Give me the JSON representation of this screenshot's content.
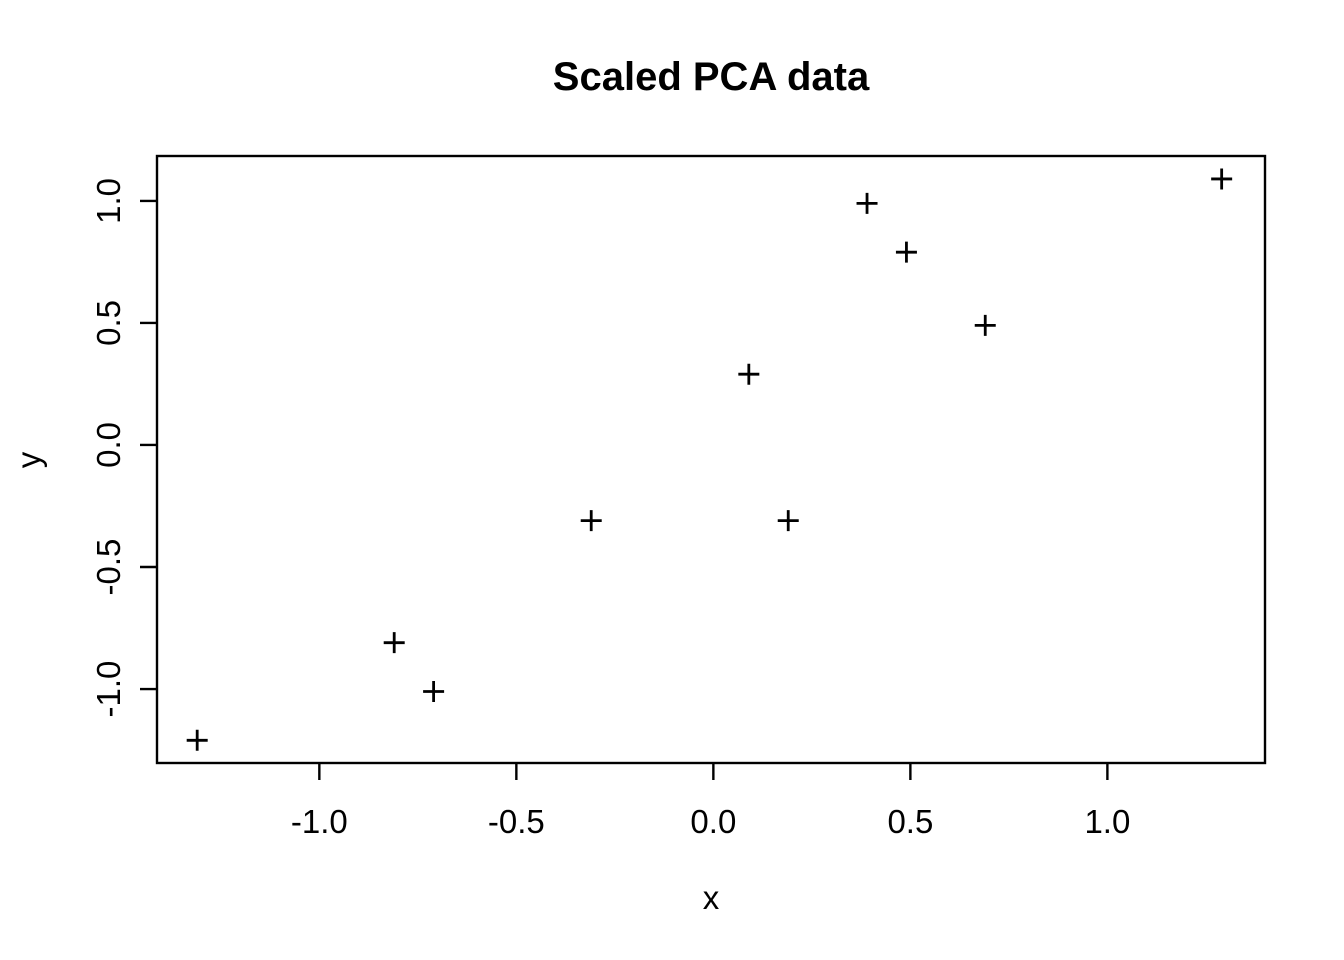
{
  "figure": {
    "kind": "r-base-scatter-plot"
  },
  "chart_data": {
    "type": "scatter",
    "title": "Scaled PCA data",
    "xlabel": "x",
    "ylabel": "y",
    "marker": "plus",
    "marker_color": "#000000",
    "background": "#ffffff",
    "grid": false,
    "legend": null,
    "points": [
      {
        "x": 0.69,
        "y": 0.49
      },
      {
        "x": -1.31,
        "y": -1.21
      },
      {
        "x": 0.39,
        "y": 0.99
      },
      {
        "x": 0.09,
        "y": 0.29
      },
      {
        "x": 1.29,
        "y": 1.09
      },
      {
        "x": 0.49,
        "y": 0.79
      },
      {
        "x": 0.19,
        "y": -0.31
      },
      {
        "x": -0.81,
        "y": -0.81
      },
      {
        "x": -0.31,
        "y": -0.31
      },
      {
        "x": -0.71,
        "y": -1.01
      }
    ],
    "x_ticks": [
      -1.0,
      -0.5,
      0.0,
      0.5,
      1.0
    ],
    "x_tick_labels": [
      "-1.0",
      "-0.5",
      "0.0",
      "0.5",
      "1.0"
    ],
    "y_ticks": [
      -1.0,
      -0.5,
      0.0,
      0.5,
      1.0
    ],
    "y_tick_labels": [
      "-1.0",
      "-0.5",
      "0.0",
      "0.5",
      "1.0"
    ],
    "xlim": [
      -1.412,
      1.4
    ],
    "ylim": [
      -1.303,
      1.184
    ]
  }
}
